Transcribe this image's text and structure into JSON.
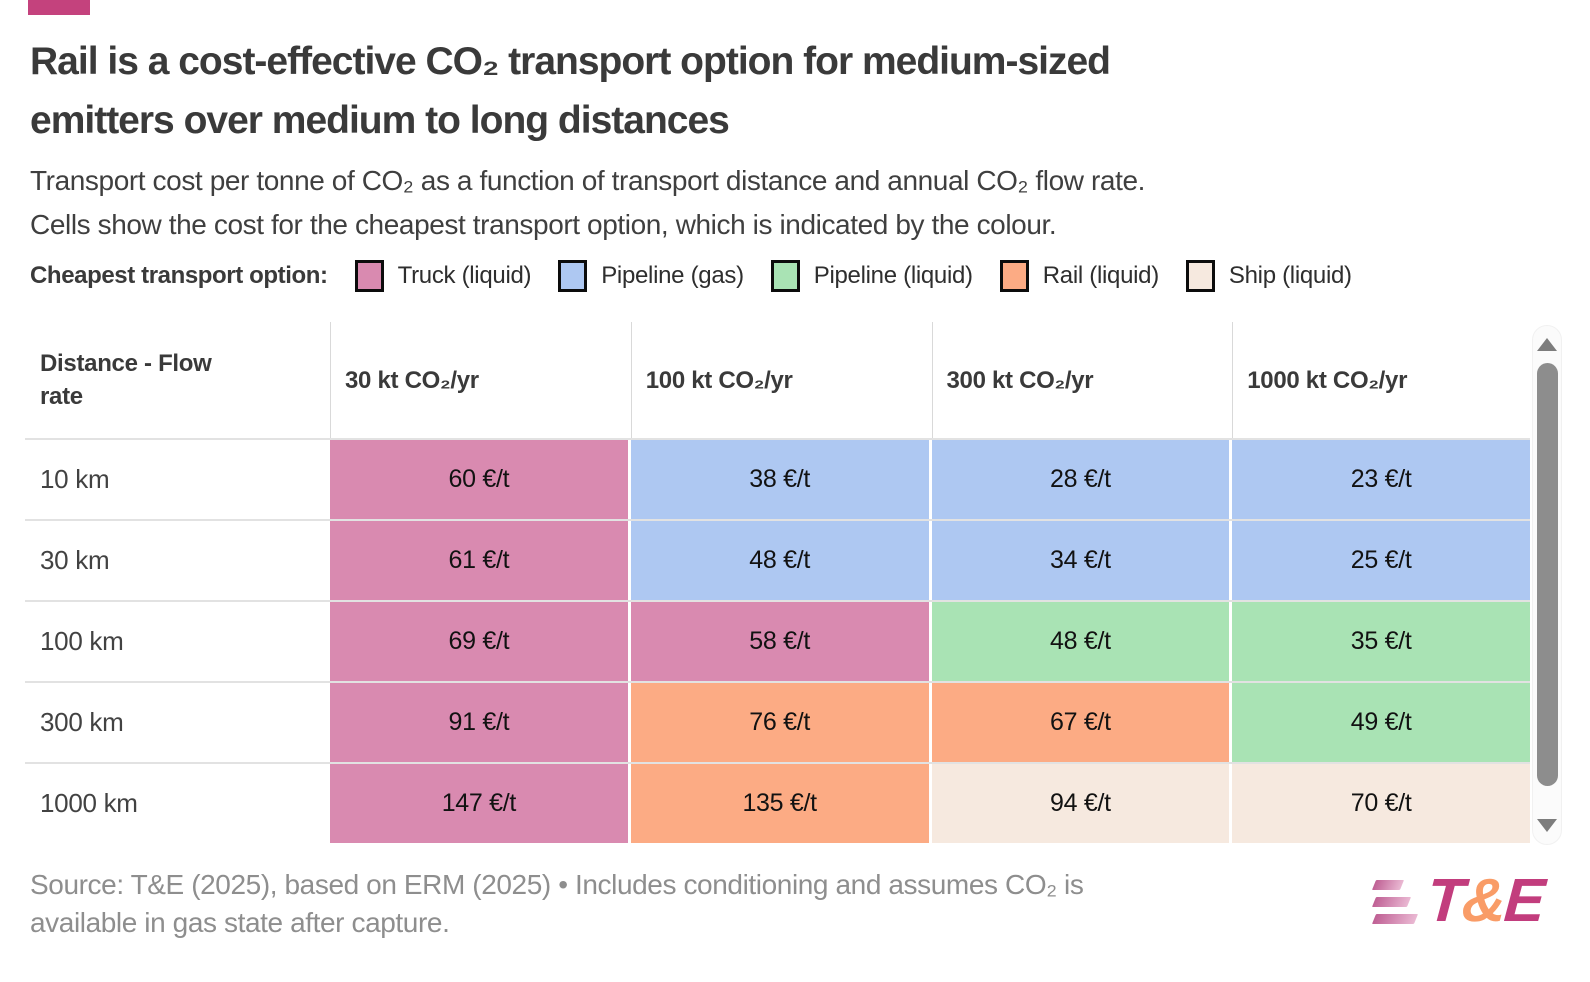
{
  "page": {
    "title": {
      "full": "Rail is a cost-effective CO₂ transport option for medium-sized emitters over medium to long distances",
      "line1": "Rail is a cost-effective CO₂ transport option for medium-sized",
      "line2": "emitters over medium to long distances"
    },
    "subtitle": {
      "full": "Transport cost per tonne of CO₂ as a function of transport distance and annual CO₂ flow rate. Cells show the cost for the cheapest transport option, which is indicated by the colour.",
      "line1": "Transport cost per tonne of CO₂ as a function of transport distance and annual CO₂ flow rate.",
      "line2": "Cells show the cost for the cheapest transport option, which is indicated by the colour."
    },
    "source": {
      "full": "Source: T&E (2025), based on ERM (2025) • Includes conditioning and assumes CO₂ is available in gas state after capture.",
      "line1": "Source: T&E (2025), based on ERM (2025) • Includes conditioning and assumes CO₂ is",
      "line2": "available in gas state after capture."
    },
    "brand_color": "#c4427d",
    "logo": {
      "t": "T",
      "amp": "&",
      "e": "E",
      "magenta": "#c23d7d",
      "orange": "#f99c67"
    }
  },
  "legend": {
    "label": "Cheapest transport option:",
    "items": [
      {
        "key": "truck",
        "label": "Truck (liquid)",
        "color": "#d98ab0"
      },
      {
        "key": "pipeline-gas",
        "label": "Pipeline (gas)",
        "color": "#aec8f2"
      },
      {
        "key": "pipeline-liquid",
        "label": "Pipeline (liquid)",
        "color": "#a9e3b4"
      },
      {
        "key": "rail",
        "label": "Rail (liquid)",
        "color": "#fcab84"
      },
      {
        "key": "ship",
        "label": "Ship (liquid)",
        "color": "#f6e9df"
      }
    ]
  },
  "chart_data": {
    "type": "heatmap",
    "title": "Rail is a cost-effective CO₂ transport option for medium-sized emitters over medium to long distances",
    "subtitle": "Transport cost per tonne of CO₂ as a function of transport distance and annual CO₂ flow rate. Cells show the cost for the cheapest transport option, which is indicated by the colour.",
    "unit": "€/t",
    "legend_position": "top",
    "columns": [
      "Distance - Flow rate",
      "30 kt CO₂/yr",
      "100 kt CO₂/yr",
      "300 kt CO₂/yr",
      "1000 kt CO₂/yr"
    ],
    "rows": [
      "10 km",
      "30 km",
      "100 km",
      "300 km",
      "1000 km"
    ],
    "values": [
      [
        60,
        38,
        28,
        23
      ],
      [
        61,
        48,
        34,
        25
      ],
      [
        69,
        58,
        48,
        35
      ],
      [
        91,
        76,
        67,
        49
      ],
      [
        147,
        135,
        94,
        70
      ]
    ],
    "cells_display": [
      [
        "60 €/t",
        "38 €/t",
        "28 €/t",
        "23 €/t"
      ],
      [
        "61 €/t",
        "48 €/t",
        "34 €/t",
        "25 €/t"
      ],
      [
        "69 €/t",
        "58 €/t",
        "48 €/t",
        "35 €/t"
      ],
      [
        "91 €/t",
        "76 €/t",
        "67 €/t",
        "49 €/t"
      ],
      [
        "147 €/t",
        "135 €/t",
        "94 €/t",
        "70 €/t"
      ]
    ],
    "options": [
      [
        "truck",
        "pipeline-gas",
        "pipeline-gas",
        "pipeline-gas"
      ],
      [
        "truck",
        "pipeline-gas",
        "pipeline-gas",
        "pipeline-gas"
      ],
      [
        "truck",
        "truck",
        "pipeline-liquid",
        "pipeline-liquid"
      ],
      [
        "truck",
        "rail",
        "rail",
        "pipeline-liquid"
      ],
      [
        "truck",
        "rail",
        "ship",
        "ship"
      ]
    ]
  }
}
